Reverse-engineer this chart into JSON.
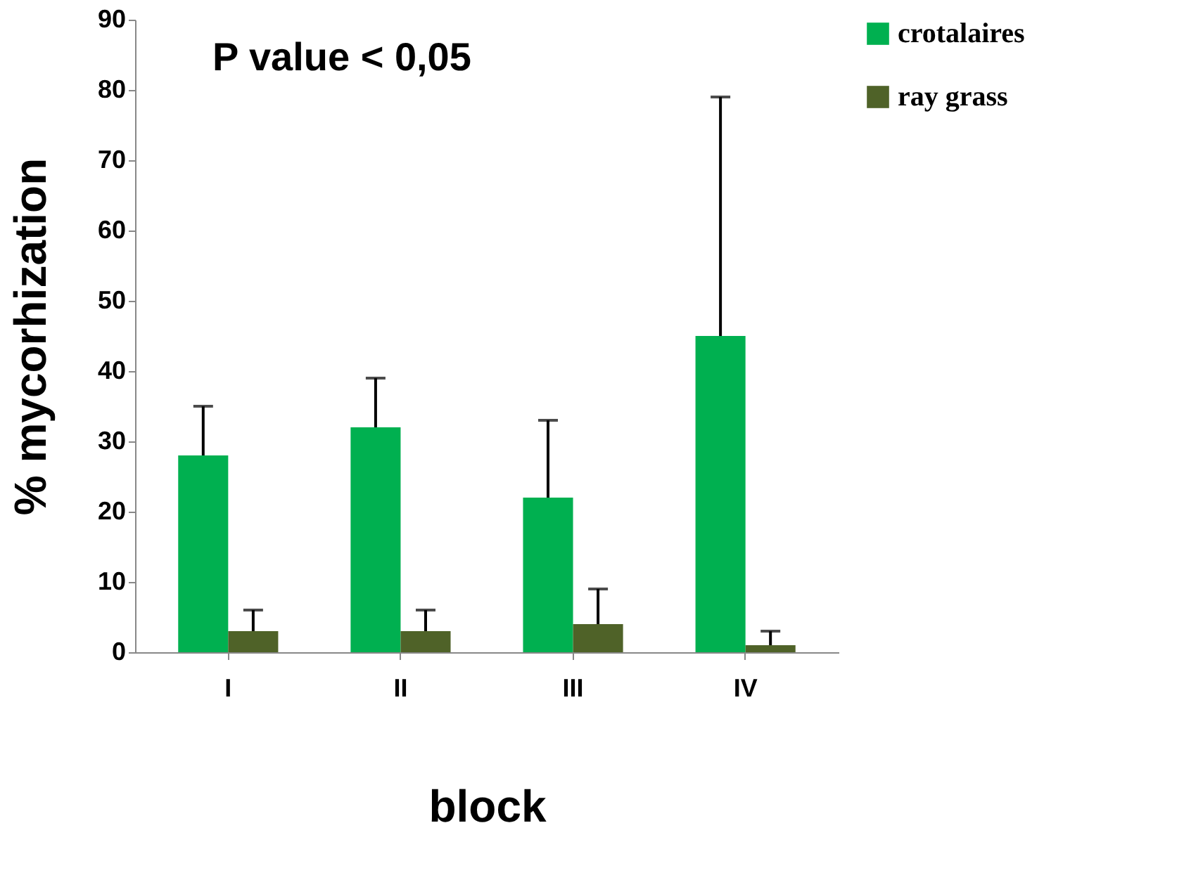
{
  "chart_data": {
    "type": "bar",
    "xlabel": "block",
    "ylabel": "% mycorhization",
    "annotations": [
      "P value < 0,05"
    ],
    "categories": [
      "I",
      "II",
      "III",
      "IV"
    ],
    "series": [
      {
        "name": "crotalaires",
        "color": "#00b050",
        "values": [
          28,
          32,
          22,
          45
        ],
        "errors": [
          [
            28,
            35
          ],
          [
            32,
            39
          ],
          [
            22,
            33
          ],
          [
            45,
            79
          ]
        ]
      },
      {
        "name": "ray grass",
        "color": "#4f6228",
        "values": [
          3,
          3,
          4,
          1
        ],
        "errors": [
          [
            3,
            6
          ],
          [
            3,
            6
          ],
          [
            4,
            9
          ],
          [
            1,
            3
          ]
        ]
      }
    ],
    "ylim": [
      0,
      90
    ],
    "yticks": [
      0,
      10,
      20,
      30,
      40,
      50,
      60,
      70,
      80,
      90
    ],
    "grid": false,
    "legend": "right"
  }
}
